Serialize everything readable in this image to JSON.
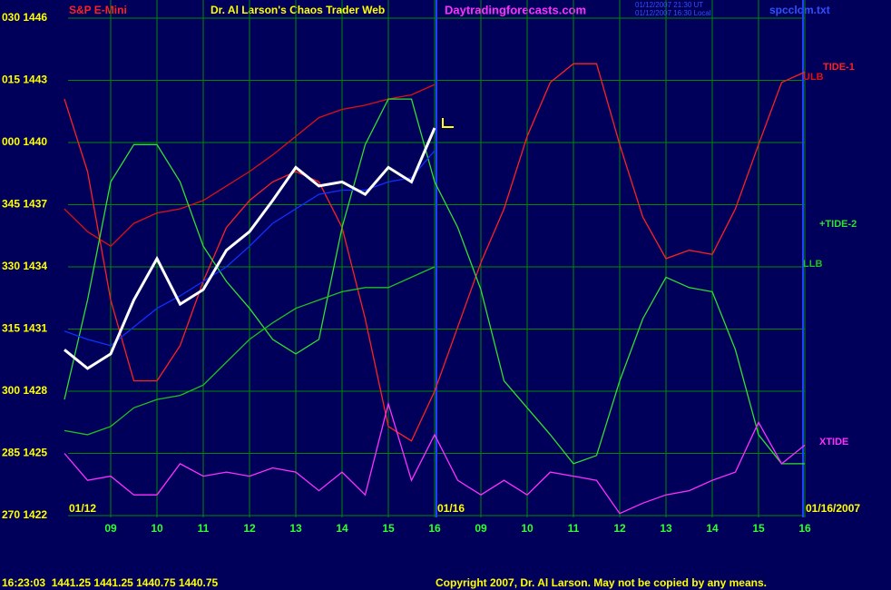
{
  "chart_data": {
    "type": "line",
    "symbol": "S&P E-Mini",
    "title": "Dr. Al Larson's Chaos Trader Web",
    "website": "Daytradingforecasts.com",
    "timestamps": [
      "01/12/2007 21:30 UT",
      "01/12/2007 16:30 Local"
    ],
    "file": "spcclom.txt",
    "date_labels": [
      "01/12",
      "01/16",
      "01/16/2007"
    ],
    "status": "16:23:03  1441.25 1441.25 1440.75 1440.75",
    "copyright": "Copyright 2007, Dr. Al Larson. May not be copied by any means.",
    "grid": true,
    "xlim": [
      8,
      24
    ],
    "ylim": [
      1422,
      1446
    ],
    "xticks": [
      {
        "value": 9,
        "label": "09"
      },
      10,
      11,
      12,
      13,
      14,
      15,
      16,
      {
        "value": 17,
        "label": "09"
      },
      {
        "value": 18,
        "label": "10"
      },
      {
        "value": 19,
        "label": "11"
      },
      {
        "value": 20,
        "label": "12"
      },
      {
        "value": 21,
        "label": "13"
      },
      {
        "value": 22,
        "label": "14"
      },
      {
        "value": 23,
        "label": "15"
      },
      {
        "value": 24,
        "label": "16"
      }
    ],
    "yticks": [
      {
        "value": 1446,
        "label": "030 1446"
      },
      {
        "value": 1443,
        "label": "015 1443"
      },
      {
        "value": 1440,
        "label": "000 1440"
      },
      {
        "value": 1437,
        "label": "345 1437"
      },
      {
        "value": 1434,
        "label": "330 1434"
      },
      {
        "value": 1431,
        "label": "315 1431"
      },
      {
        "value": 1428,
        "label": "300 1428"
      },
      {
        "value": 1425,
        "label": "285 1425"
      },
      {
        "value": 1422,
        "label": "270 1422"
      }
    ],
    "x": [
      8,
      8.5,
      9,
      9.5,
      10,
      10.5,
      11,
      11.5,
      12,
      12.5,
      13,
      13.5,
      14,
      14.5,
      15,
      15.5,
      16,
      16.5,
      17,
      17.5,
      18,
      18.5,
      19,
      19.5,
      20,
      20.5,
      21,
      21.5,
      22,
      22.5,
      23,
      23.5,
      24
    ],
    "series": [
      {
        "name": "TIDE-1",
        "color": "#ff2020",
        "values": [
          1442.1,
          1438.6,
          1432.4,
          1428.5,
          1428.5,
          1430.2,
          1433.3,
          1435.9,
          1437.2,
          1438.1,
          1438.6,
          1438.1,
          1435.9,
          1431.5,
          1426.3,
          1425.6,
          1428.0,
          1431.1,
          1434.2,
          1436.8,
          1440.3,
          1442.9,
          1443.8,
          1443.8,
          1439.9,
          1436.4,
          1434.4,
          1434.8,
          1434.6,
          1436.8,
          1439.9,
          1442.9,
          1443.4
        ]
      },
      {
        "name": "ULB",
        "color": "#e01010",
        "values": [
          1436.8,
          1435.7,
          1435.0,
          1436.1,
          1436.6,
          1436.8,
          1437.2,
          1437.9,
          1438.6,
          1439.4,
          1440.3,
          1441.2,
          1441.6,
          1441.8,
          1442.1,
          1442.3,
          1442.8,
          null,
          null,
          null,
          null,
          null,
          null,
          null,
          null,
          null,
          null,
          null,
          null,
          null,
          null,
          null,
          null
        ]
      },
      {
        "name": "+TIDE-2",
        "color": "#30e030",
        "values": [
          1427.6,
          1432.4,
          1438.1,
          1439.9,
          1439.9,
          1438.1,
          1435.0,
          1433.3,
          1432.0,
          1430.5,
          1429.8,
          1430.5,
          1435.9,
          1439.9,
          1442.1,
          1442.1,
          1438.1,
          1435.9,
          1432.9,
          1428.5,
          1427.2,
          1425.9,
          1424.5,
          1424.9,
          1428.5,
          1431.5,
          1433.5,
          1433.0,
          1432.8,
          1430.0,
          1425.9,
          1424.5,
          1424.5
        ]
      },
      {
        "name": "LLB",
        "color": "#20c020",
        "values": [
          1426.1,
          1425.9,
          1426.3,
          1427.2,
          1427.6,
          1427.8,
          1428.3,
          1429.4,
          1430.5,
          1431.3,
          1432.0,
          1432.4,
          1432.8,
          1433.0,
          1433.0,
          1433.5,
          1434.0,
          null,
          null,
          null,
          null,
          null,
          null,
          null,
          null,
          null,
          null,
          null,
          null,
          null,
          null,
          null,
          null
        ]
      },
      {
        "name": "XTIDE",
        "color": "#ff30ff",
        "values": [
          1425.0,
          1423.7,
          1423.9,
          1423.0,
          1423.0,
          1424.5,
          1423.9,
          1424.1,
          1423.9,
          1424.3,
          1424.1,
          1423.2,
          1424.1,
          1423.0,
          1427.4,
          1423.7,
          1425.9,
          1423.7,
          1423.0,
          1423.7,
          1423.0,
          1424.1,
          1423.9,
          1423.7,
          1422.1,
          1422.6,
          1423.0,
          1423.2,
          1423.7,
          1424.1,
          1426.5,
          1424.5,
          1425.4
        ]
      },
      {
        "color": "#1030ff",
        "values": [
          1430.9,
          1430.5,
          1430.2,
          1431.1,
          1432.0,
          1432.6,
          1433.3,
          1434.0,
          1435.0,
          1436.1,
          1436.8,
          1437.5,
          1437.7,
          1437.7,
          1438.1,
          1438.3,
          1439.6,
          null,
          null,
          null,
          null,
          null,
          null,
          null,
          null,
          null,
          null,
          null,
          null,
          null,
          null,
          null,
          null
        ]
      },
      {
        "color": "#ffffff",
        "values": [
          1430.0,
          1429.1,
          1429.8,
          1432.4,
          1434.4,
          1432.2,
          1432.9,
          1434.8,
          1435.7,
          1437.2,
          1438.8,
          1437.9,
          1438.1,
          1437.5,
          1438.8,
          1438.1,
          1440.7,
          null,
          null,
          null,
          null,
          null,
          null,
          null,
          null,
          null,
          null,
          null,
          null,
          null,
          null,
          null,
          null
        ]
      }
    ]
  }
}
